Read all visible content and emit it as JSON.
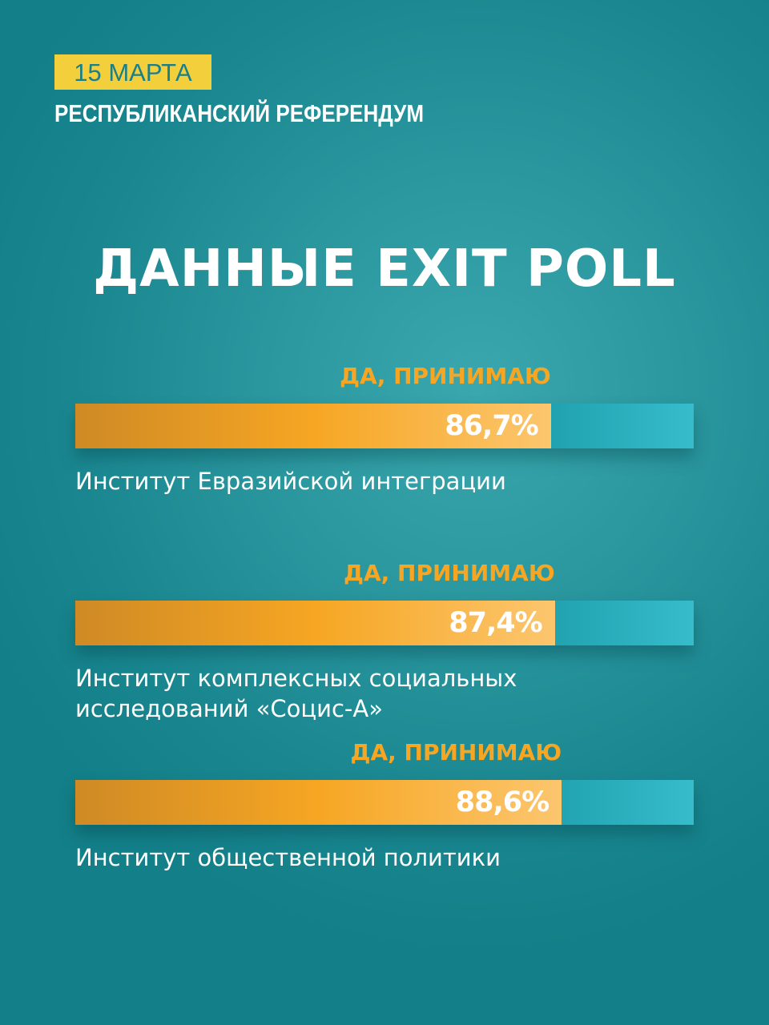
{
  "header": {
    "date": "15 МАРТА",
    "subtitle": "РЕСПУБЛИКАНСКИЙ РЕФЕРЕНДУМ",
    "title": "ДАННЫЕ EXIT POLL"
  },
  "colors": {
    "accent_yellow": "#f4cf3c",
    "bar_orange": "#f6a623",
    "answer_label": "#f6a623",
    "background_teal": "#1f8f97",
    "track_teal": "#1a9aa8"
  },
  "chart_data": {
    "type": "bar",
    "orientation": "horizontal",
    "title": "ДАННЫЕ EXIT POLL",
    "xlim": [
      0,
      100
    ],
    "unit": "%",
    "grid": false,
    "categories": [
      "Институт Евразийской интеграции",
      "Институт комплексных социальных исследований «Социс-А»",
      "Институт общественной политики"
    ],
    "values": [
      86.7,
      87.4,
      88.6
    ],
    "bars": [
      {
        "answer_label": "ДА, ПРИНИМАЮ",
        "value": 86.7,
        "value_label": "86,7%",
        "source": "Институт Евразийской интеграции"
      },
      {
        "answer_label": "ДА, ПРИНИМАЮ",
        "value": 87.4,
        "value_label": "87,4%",
        "source": "Институт комплексных социальных исследований «Социс-А»"
      },
      {
        "answer_label": "ДА, ПРИНИМАЮ",
        "value": 88.6,
        "value_label": "88,6%",
        "source": "Институт общественной политики"
      }
    ]
  }
}
